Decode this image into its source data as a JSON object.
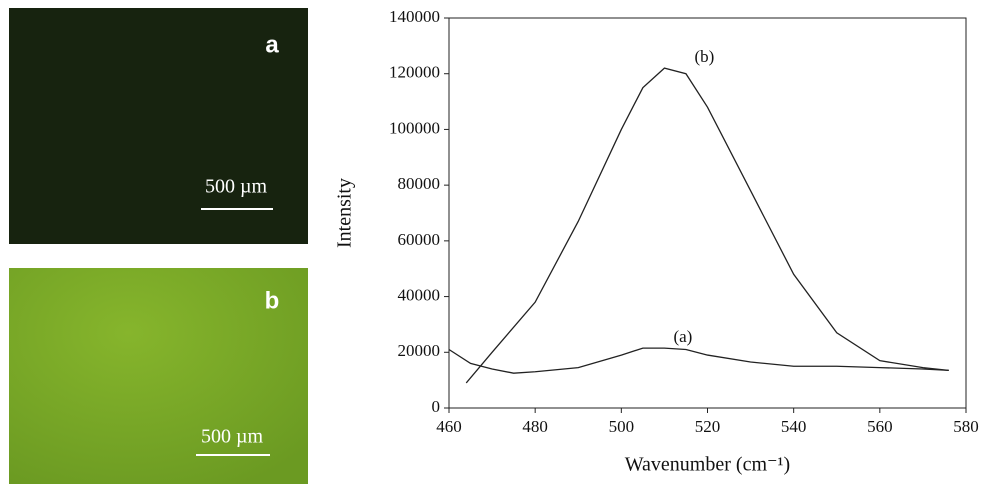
{
  "panels": [
    {
      "label": "a",
      "scale_bar": "500 µm"
    },
    {
      "label": "b",
      "scale_bar": "500 µm"
    }
  ],
  "chart_data": {
    "type": "line",
    "xlabel": "Wavenumber (cm⁻¹)",
    "ylabel": "Intensity",
    "xlim": [
      460,
      580
    ],
    "xticks": [
      460,
      480,
      500,
      520,
      540,
      560,
      580
    ],
    "ylim": [
      0,
      140000
    ],
    "yticks": [
      0,
      20000,
      40000,
      60000,
      80000,
      100000,
      120000,
      140000
    ],
    "series": [
      {
        "name": "(a)",
        "color": "#222222",
        "x": [
          460,
          465,
          470,
          475,
          480,
          490,
          500,
          505,
          510,
          515,
          520,
          530,
          540,
          550,
          560,
          570,
          576
        ],
        "values": [
          21000,
          16000,
          14000,
          12500,
          13000,
          14500,
          19000,
          21500,
          21500,
          21000,
          19000,
          16500,
          15000,
          15000,
          14500,
          14000,
          13500
        ]
      },
      {
        "name": "(b)",
        "color": "#222222",
        "x": [
          464,
          470,
          480,
          490,
          500,
          505,
          510,
          515,
          520,
          530,
          540,
          550,
          560,
          570,
          576
        ],
        "values": [
          9000,
          20000,
          38000,
          67000,
          100000,
          115000,
          122000,
          120000,
          108000,
          78000,
          48000,
          27000,
          17000,
          14500,
          13500
        ]
      }
    ]
  }
}
